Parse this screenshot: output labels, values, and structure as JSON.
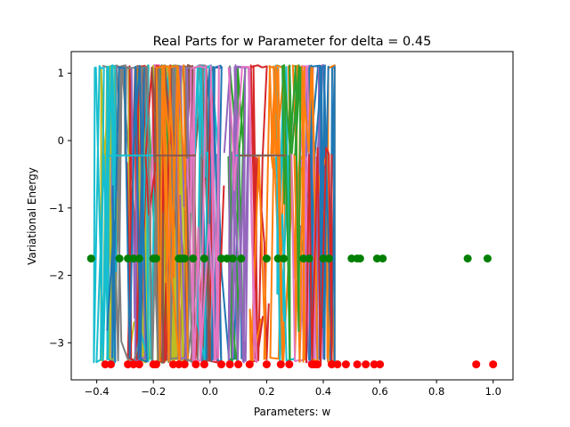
{
  "chart_data": {
    "type": "line",
    "title": "Real Parts for w Parameter for delta = 0.45",
    "xlabel": "Parameters: w",
    "ylabel": "Variational Energy",
    "xlim": [
      -0.49,
      1.07
    ],
    "ylim": [
      -3.55,
      1.32
    ],
    "xticks": [
      -0.4,
      -0.2,
      0.0,
      0.2,
      0.4,
      0.6,
      0.8,
      1.0
    ],
    "xtick_labels": [
      "−0.4",
      "−0.2",
      "0.0",
      "0.2",
      "0.4",
      "0.6",
      "0.8",
      "1.0"
    ],
    "yticks": [
      1,
      0,
      -1,
      -2,
      -3
    ],
    "ytick_labels": [
      "1",
      "0",
      "−1",
      "−2",
      "−3"
    ],
    "grid": false,
    "legend": "none",
    "colors": [
      "#1f77b4",
      "#ff7f0e",
      "#2ca02c",
      "#d62728",
      "#9467bd",
      "#8c564b",
      "#e377c2",
      "#7f7f7f",
      "#bcbd22",
      "#17becf"
    ],
    "marker_series": [
      {
        "color": "#008000",
        "y": -1.75,
        "x": [
          -0.42,
          -0.32,
          -0.29,
          -0.27,
          -0.25,
          -0.2,
          -0.19,
          -0.11,
          -0.1,
          -0.09,
          -0.06,
          -0.02,
          0.04,
          0.06,
          0.08,
          0.11,
          0.2,
          0.24,
          0.26,
          0.33,
          0.35,
          0.4,
          0.42,
          0.5,
          0.52,
          0.53,
          0.59,
          0.61,
          0.91,
          0.98
        ]
      },
      {
        "color": "#ff0000",
        "y": -3.32,
        "x": [
          -0.37,
          -0.35,
          -0.29,
          -0.27,
          -0.25,
          -0.2,
          -0.19,
          -0.13,
          -0.11,
          -0.09,
          -0.05,
          -0.02,
          0.04,
          0.07,
          0.1,
          0.14,
          0.2,
          0.25,
          0.28,
          0.36,
          0.37,
          0.38,
          0.43,
          0.45,
          0.48,
          0.52,
          0.55,
          0.58,
          0.6,
          0.94,
          1.0
        ]
      }
    ]
  }
}
